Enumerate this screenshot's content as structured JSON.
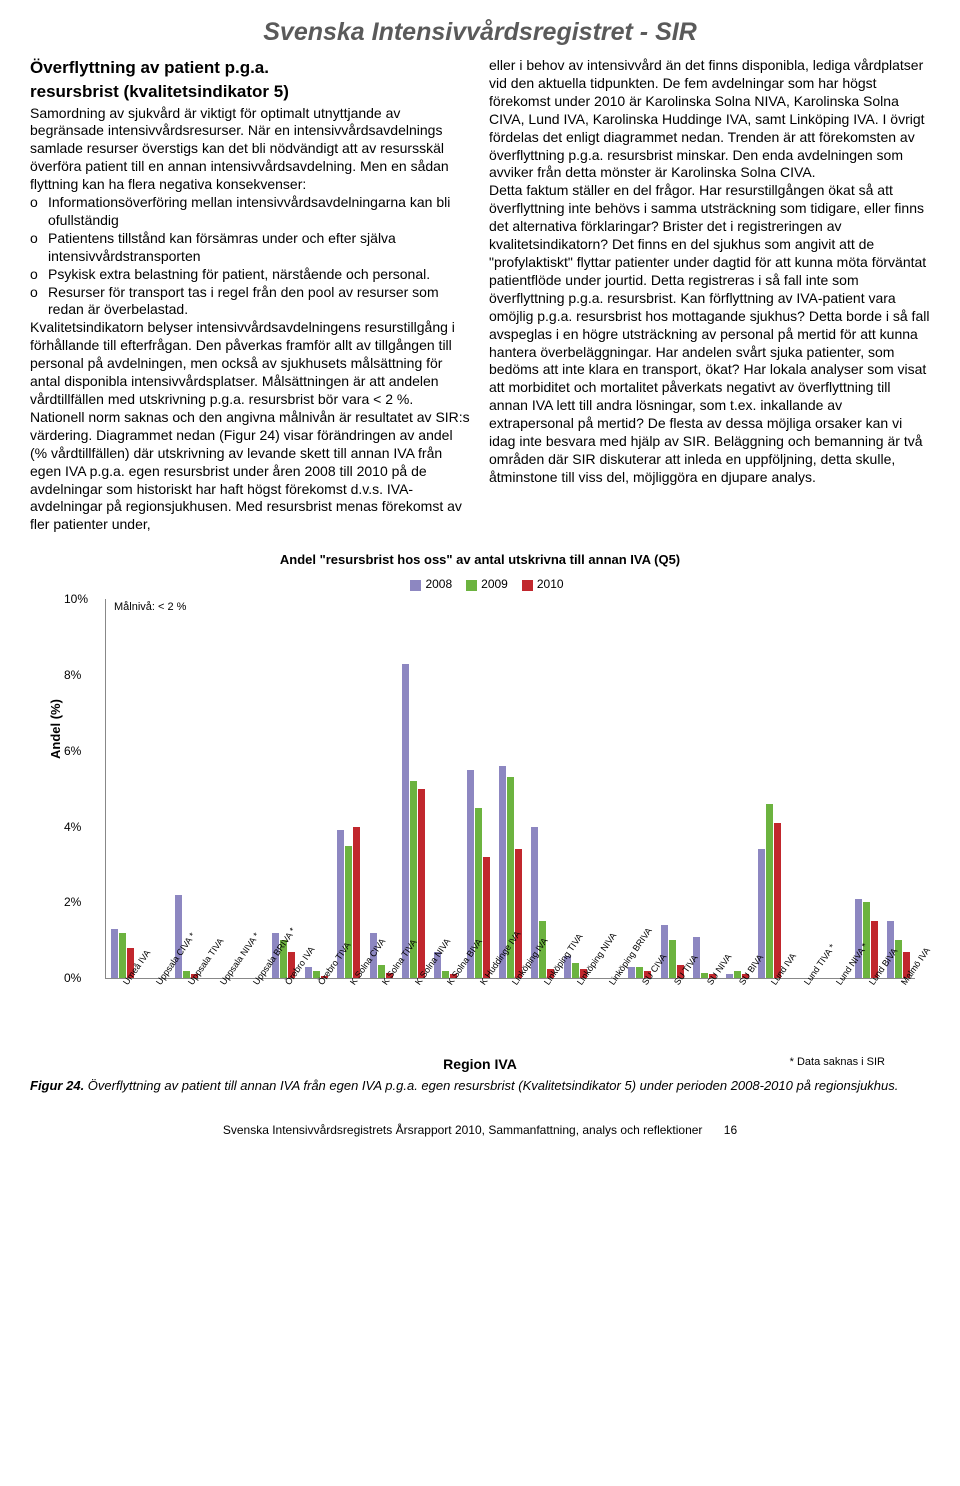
{
  "page_title": "Svenska Intensivvårdsregistret - SIR",
  "left": {
    "heading_1": "Överflyttning av patient p.g.a.",
    "heading_2": "resursbrist (kvalitetsindikator 5)",
    "para1": "Samordning av sjukvård är viktigt för optimalt utnyttjande av begränsade intensivvårdsresurser. När en intensivvårdsavdelnings samlade resurser överstigs kan det bli nödvändigt att av resursskäl överföra patient till en annan intensivvårdsavdelning. Men en sådan flyttning kan ha flera negativa konsekvenser:",
    "bullets": [
      "Informationsöverföring mellan intensivvårdsavdelningarna kan bli ofullständig",
      "Patientens tillstånd kan försämras under och efter själva intensivvårdstransporten",
      "Psykisk extra belastning för patient, närstående och personal.",
      "Resurser för transport tas i regel från den pool av resurser som redan är överbelastad."
    ],
    "para2": "Kvalitetsindikatorn belyser intensivvårdsavdelningens resurstillgång i förhållande till efterfrågan. Den påverkas framför allt av tillgången till personal på avdelningen, men också av sjukhusets målsättning för antal disponibla intensivvårdsplatser. Målsättningen är att andelen vårdtillfällen med utskrivning p.g.a. resursbrist bör vara < 2 %. Nationell norm saknas och den angivna målnivån är resultatet av SIR:s värdering. Diagrammet nedan (Figur 24) visar förändringen av andel (% vårdtillfällen) där utskrivning av levande skett till annan IVA från egen IVA p.g.a. egen resursbrist under åren 2008 till 2010 på de avdelningar som historiskt har haft högst förekomst d.v.s. IVA-avdelningar på regionsjukhusen. Med resursbrist menas förekomst av fler patienter under,"
  },
  "right": {
    "para": "eller i behov av intensivvård än det finns disponibla, lediga vårdplatser vid den aktuella tidpunkten. De fem avdelningar som har högst förekomst under 2010 är Karolinska Solna NIVA, Karolinska Solna CIVA, Lund IVA, Karolinska Huddinge IVA, samt Linköping IVA. I övrigt fördelas det enligt diagrammet nedan. Trenden är att förekomsten av överflyttning p.g.a. resursbrist minskar. Den enda avdelningen som avviker från detta mönster är Karolinska Solna CIVA.\nDetta faktum ställer en del frågor. Har resurstillgången ökat så att överflyttning inte behövs i samma utsträckning som tidigare, eller finns det alternativa förklaringar? Brister det i registreringen av kvalitetsindikatorn? Det finns en del sjukhus som angivit att de \"profylaktiskt\" flyttar patienter under dagtid för att kunna möta förväntat patientflöde under jourtid. Detta registreras i så fall inte som överflyttning p.g.a. resursbrist. Kan förflyttning av IVA-patient vara omöjlig p.g.a. resursbrist hos mottagande sjukhus? Detta borde i så fall avspeglas i en högre utsträckning av personal på mertid för att kunna hantera överbeläggningar. Har andelen svårt sjuka patienter, som bedöms att inte klara en transport, ökat? Har lokala analyser som visat att morbiditet och mortalitet påverkats negativt av överflyttning till annan IVA lett till andra lösningar, som t.ex. inkallande av extrapersonal på mertid? De flesta av dessa möjliga orsaker kan vi idag inte besvara med hjälp av SIR. Beläggning och bemanning är två områden där SIR diskuterar att inleda en uppföljning, detta skulle, åtminstone till viss del, möjliggöra en djupare analys."
  },
  "chart": {
    "title": "Andel \"resursbrist hos oss\" av antal utskrivna till annan IVA (Q5)",
    "legend": [
      "2008",
      "2009",
      "2010"
    ],
    "colors": [
      "#8d87c1",
      "#6cb33f",
      "#c1272d"
    ],
    "ylabel": "Andel (%)",
    "ymax": 10,
    "yticks": [
      "0%",
      "2%",
      "4%",
      "6%",
      "8%",
      "10%"
    ],
    "malniva": "Målnivå: < 2 %",
    "xaxis_title": "Region IVA",
    "footnote": "* Data saknas i SIR",
    "categories": [
      "Umeå IVA",
      "Uppsala CIVA *",
      "Uppsala TIVA",
      "Uppsala NIVA *",
      "Uppsala BRIVA *",
      "Örebro IVA",
      "Örebro TIVA",
      "K Solna CIVA",
      "K Solna TIVA",
      "K Solna NIVA",
      "K Solna BIVA",
      "K Huddinge IVA",
      "Linköping IVA",
      "Linköping TIVA",
      "Linköping NIVA",
      "Linköping BRIVA",
      "SU CIVA",
      "SU TIVA",
      "SU NIVA",
      "SU BIVA",
      "Lund IVA",
      "Lund TIVA *",
      "Lund NIVA *",
      "Lund BIVA",
      "Malmö IVA"
    ],
    "series": {
      "2008": [
        1.3,
        0,
        2.2,
        0,
        0,
        1.2,
        0.3,
        3.9,
        1.2,
        8.3,
        0.7,
        5.5,
        5.6,
        4.0,
        0.6,
        0,
        0.3,
        1.4,
        1.1,
        0.1,
        3.4,
        0,
        0,
        2.1,
        1.5
      ],
      "2009": [
        1.2,
        0,
        0.2,
        0,
        0,
        1.0,
        0.2,
        3.5,
        0.35,
        5.2,
        0.2,
        4.5,
        5.3,
        1.5,
        0.4,
        0,
        0.3,
        1.0,
        0.15,
        0.2,
        4.6,
        0,
        0,
        2.0,
        1.0
      ],
      "2010": [
        0.8,
        0,
        0.1,
        0,
        0,
        0.7,
        0.07,
        4.0,
        0.15,
        5.0,
        0.1,
        3.2,
        3.4,
        0.25,
        0.25,
        0,
        0.2,
        0.35,
        0.1,
        0.1,
        4.1,
        0,
        0,
        1.5,
        0.7
      ]
    }
  },
  "caption_bold": "Figur 24.",
  "caption_text": " Överflyttning av patient till annan IVA från egen IVA p.g.a. egen resursbrist (Kvalitetsindikator 5) under perioden 2008-2010 på regionsjukhus.",
  "footer": "Svenska Intensivvårdsregistrets Årsrapport 2010, Sammanfattning, analys och reflektioner",
  "page_number": "16"
}
